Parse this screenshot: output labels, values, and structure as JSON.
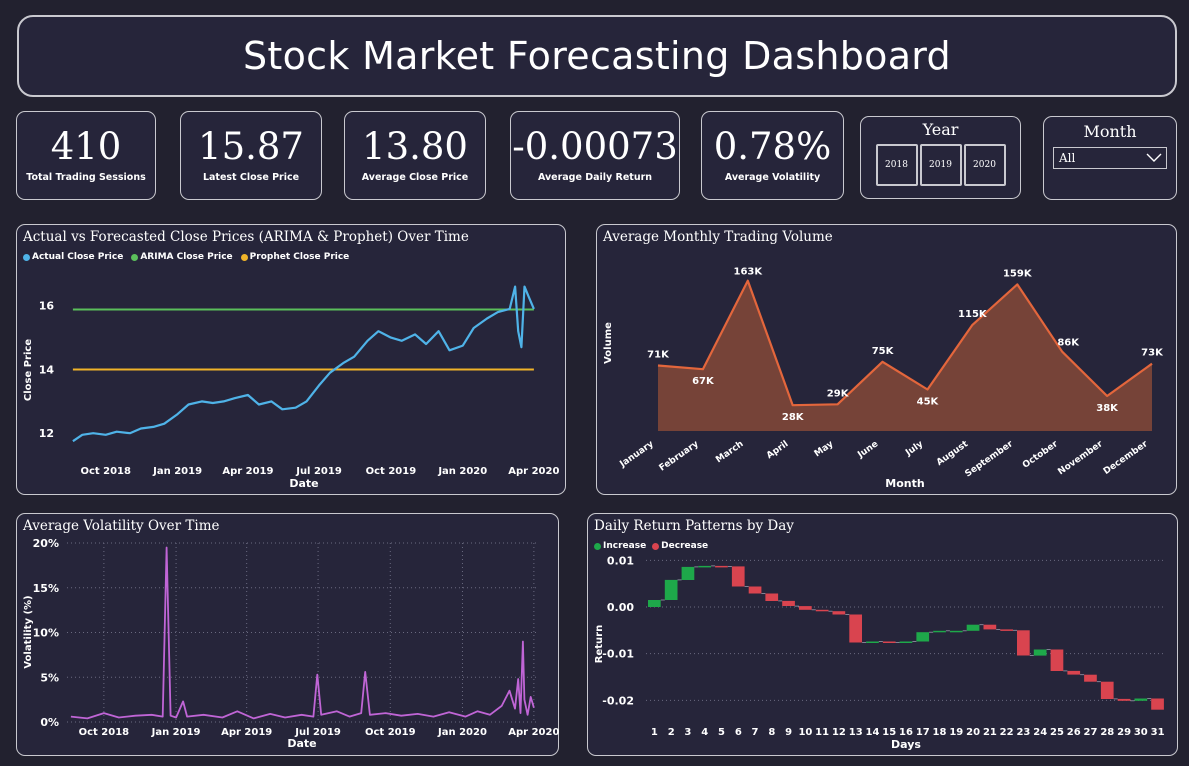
{
  "header": {
    "title": "Stock Market Forecasting Dashboard"
  },
  "kpis": [
    {
      "value": "410",
      "label": "Total Trading Sessions"
    },
    {
      "value": "15.87",
      "label": "Latest Close Price"
    },
    {
      "value": "13.80",
      "label": "Average Close Price"
    },
    {
      "value": "-0.00073",
      "label": "Average Daily Return"
    },
    {
      "value": "0.78%",
      "label": "Average Volatility"
    }
  ],
  "year_slicer": {
    "title": "Year",
    "options": [
      "2018",
      "2019",
      "2020"
    ]
  },
  "month_slicer": {
    "title": "Month",
    "selected": "All"
  },
  "colors": {
    "actual": "#4fb3e8",
    "arima": "#5bbf5b",
    "prophet": "#f0b429",
    "volume_line": "#e3663c",
    "volume_fill": "#7a4438",
    "volatility": "#c065d6",
    "increase": "#1ea84a",
    "decrease": "#d9444f",
    "total": "#37a048"
  },
  "chart_data": [
    {
      "id": "price_forecast",
      "type": "line",
      "title": "Actual vs Forecasted Close Prices (ARIMA & Prophet) Over Time",
      "xlabel": "Date",
      "ylabel": "Close Price",
      "x_ticks": [
        "Oct 2018",
        "Jan 2019",
        "Apr 2019",
        "Jul 2019",
        "Oct 2019",
        "Jan 2020",
        "Apr 2020"
      ],
      "y_ticks": [
        12,
        14,
        16
      ],
      "xlim": [
        "2018-08-15",
        "2020-04-05"
      ],
      "ylim": [
        11.6,
        16.9
      ],
      "legend_position": "top-left",
      "series": [
        {
          "name": "Actual Close Price",
          "color_key": "actual",
          "x": [
            "2018-08-20",
            "2018-09-01",
            "2018-09-15",
            "2018-10-01",
            "2018-10-15",
            "2018-11-01",
            "2018-11-15",
            "2018-12-01",
            "2018-12-15",
            "2019-01-01",
            "2019-01-15",
            "2019-02-01",
            "2019-02-15",
            "2019-03-01",
            "2019-03-15",
            "2019-04-01",
            "2019-04-15",
            "2019-05-01",
            "2019-05-15",
            "2019-06-01",
            "2019-06-15",
            "2019-07-01",
            "2019-07-15",
            "2019-08-01",
            "2019-08-15",
            "2019-09-01",
            "2019-09-15",
            "2019-10-01",
            "2019-10-15",
            "2019-11-01",
            "2019-11-15",
            "2019-12-01",
            "2019-12-15",
            "2020-01-01",
            "2020-01-15",
            "2020-02-01",
            "2020-02-15",
            "2020-03-01",
            "2020-03-08",
            "2020-03-12",
            "2020-03-16",
            "2020-03-20",
            "2020-03-25",
            "2020-04-01"
          ],
          "y": [
            11.75,
            11.95,
            12.0,
            11.95,
            12.05,
            12.0,
            12.15,
            12.2,
            12.3,
            12.6,
            12.9,
            13.0,
            12.95,
            13.0,
            13.1,
            13.2,
            12.9,
            13.0,
            12.75,
            12.8,
            13.0,
            13.5,
            13.9,
            14.2,
            14.4,
            14.9,
            15.2,
            15.0,
            14.9,
            15.1,
            14.8,
            15.2,
            14.6,
            14.75,
            15.3,
            15.6,
            15.8,
            15.9,
            16.6,
            15.2,
            14.7,
            16.6,
            16.3,
            15.9
          ]
        },
        {
          "name": "ARIMA Close Price",
          "color_key": "arima",
          "x": [
            "2018-08-20",
            "2020-04-01"
          ],
          "y": [
            15.88,
            15.88
          ]
        },
        {
          "name": "Prophet Close Price",
          "color_key": "prophet",
          "x": [
            "2018-08-20",
            "2020-04-01"
          ],
          "y": [
            14.0,
            14.0
          ]
        }
      ]
    },
    {
      "id": "monthly_volume",
      "type": "area",
      "title": "Average Monthly Trading Volume",
      "xlabel": "Month",
      "ylabel": "Volume",
      "categories": [
        "January",
        "February",
        "March",
        "April",
        "May",
        "June",
        "July",
        "August",
        "September",
        "October",
        "November",
        "December"
      ],
      "values": [
        71000,
        67000,
        163000,
        28000,
        29000,
        75000,
        45000,
        115000,
        159000,
        86000,
        38000,
        73000
      ],
      "data_labels": [
        "71K",
        "67K",
        "163K",
        "28K",
        "29K",
        "75K",
        "45K",
        "115K",
        "159K",
        "86K",
        "38K",
        "73K"
      ],
      "ylim": [
        0,
        180000
      ]
    },
    {
      "id": "volatility",
      "type": "line",
      "title": "Average Volatility Over Time",
      "xlabel": "Date",
      "ylabel": "Volatility (%)",
      "x_ticks": [
        "Oct 2018",
        "Jan 2019",
        "Apr 2019",
        "Jul 2019",
        "Oct 2019",
        "Jan 2020",
        "Apr 2020"
      ],
      "y_ticks": [
        "0%",
        "5%",
        "10%",
        "15%",
        "20%"
      ],
      "xlim": [
        "2018-08-15",
        "2020-04-05"
      ],
      "ylim": [
        0,
        20
      ],
      "grid": true,
      "series": [
        {
          "name": "",
          "color_key": "volatility",
          "x": [
            "2018-08-20",
            "2018-09-10",
            "2018-10-01",
            "2018-10-20",
            "2018-11-10",
            "2018-12-01",
            "2018-12-15",
            "2018-12-20",
            "2018-12-25",
            "2019-01-01",
            "2019-01-10",
            "2019-01-15",
            "2019-02-05",
            "2019-03-01",
            "2019-03-20",
            "2019-04-10",
            "2019-05-01",
            "2019-05-20",
            "2019-06-10",
            "2019-06-25",
            "2019-06-30",
            "2019-07-05",
            "2019-07-25",
            "2019-08-10",
            "2019-08-25",
            "2019-08-30",
            "2019-09-05",
            "2019-09-25",
            "2019-10-15",
            "2019-11-05",
            "2019-11-25",
            "2019-12-15",
            "2020-01-05",
            "2020-01-20",
            "2020-02-05",
            "2020-02-20",
            "2020-03-01",
            "2020-03-08",
            "2020-03-12",
            "2020-03-15",
            "2020-03-18",
            "2020-03-20",
            "2020-03-24",
            "2020-03-28",
            "2020-04-01"
          ],
          "y": [
            0.6,
            0.4,
            1.0,
            0.5,
            0.7,
            0.8,
            0.6,
            19.5,
            0.7,
            0.5,
            2.3,
            0.6,
            0.8,
            0.5,
            1.2,
            0.4,
            0.9,
            0.5,
            0.8,
            0.6,
            5.3,
            0.8,
            1.2,
            0.6,
            1.0,
            5.6,
            0.8,
            1.0,
            0.7,
            0.9,
            0.6,
            1.1,
            0.6,
            1.2,
            0.8,
            1.8,
            3.5,
            1.5,
            4.8,
            1.0,
            9.0,
            2.5,
            0.8,
            2.8,
            1.6
          ]
        }
      ]
    },
    {
      "id": "daily_returns",
      "type": "bar",
      "title": "Daily Return Patterns by Day",
      "xlabel": "Days",
      "ylabel": "Return",
      "legend": [
        "Increase",
        "Decrease"
      ],
      "legend_position": "top-left",
      "y_ticks": [
        "0.01",
        "0.00",
        "-0.01",
        "-0.02"
      ],
      "ylim": [
        -0.0225,
        0.0105
      ],
      "categories": [
        "1",
        "2",
        "3",
        "4",
        "5",
        "6",
        "7",
        "8",
        "9",
        "10",
        "11",
        "12",
        "13",
        "14",
        "15",
        "16",
        "17",
        "18",
        "19",
        "20",
        "21",
        "22",
        "23",
        "24",
        "25",
        "26",
        "27",
        "28",
        "29",
        "30",
        "31"
      ],
      "running_total": [
        0.0015,
        0.0058,
        0.0086,
        0.0088,
        0.0087,
        0.0044,
        0.0029,
        0.0013,
        0.0002,
        -0.0006,
        -0.0009,
        -0.0016,
        -0.0076,
        -0.0074,
        -0.0076,
        -0.0074,
        -0.0054,
        -0.0051,
        -0.0051,
        -0.0038,
        -0.0048,
        -0.005,
        -0.0104,
        -0.0091,
        -0.0137,
        -0.0145,
        -0.016,
        -0.0197,
        -0.0201,
        -0.0196,
        -0.022
      ]
    }
  ]
}
